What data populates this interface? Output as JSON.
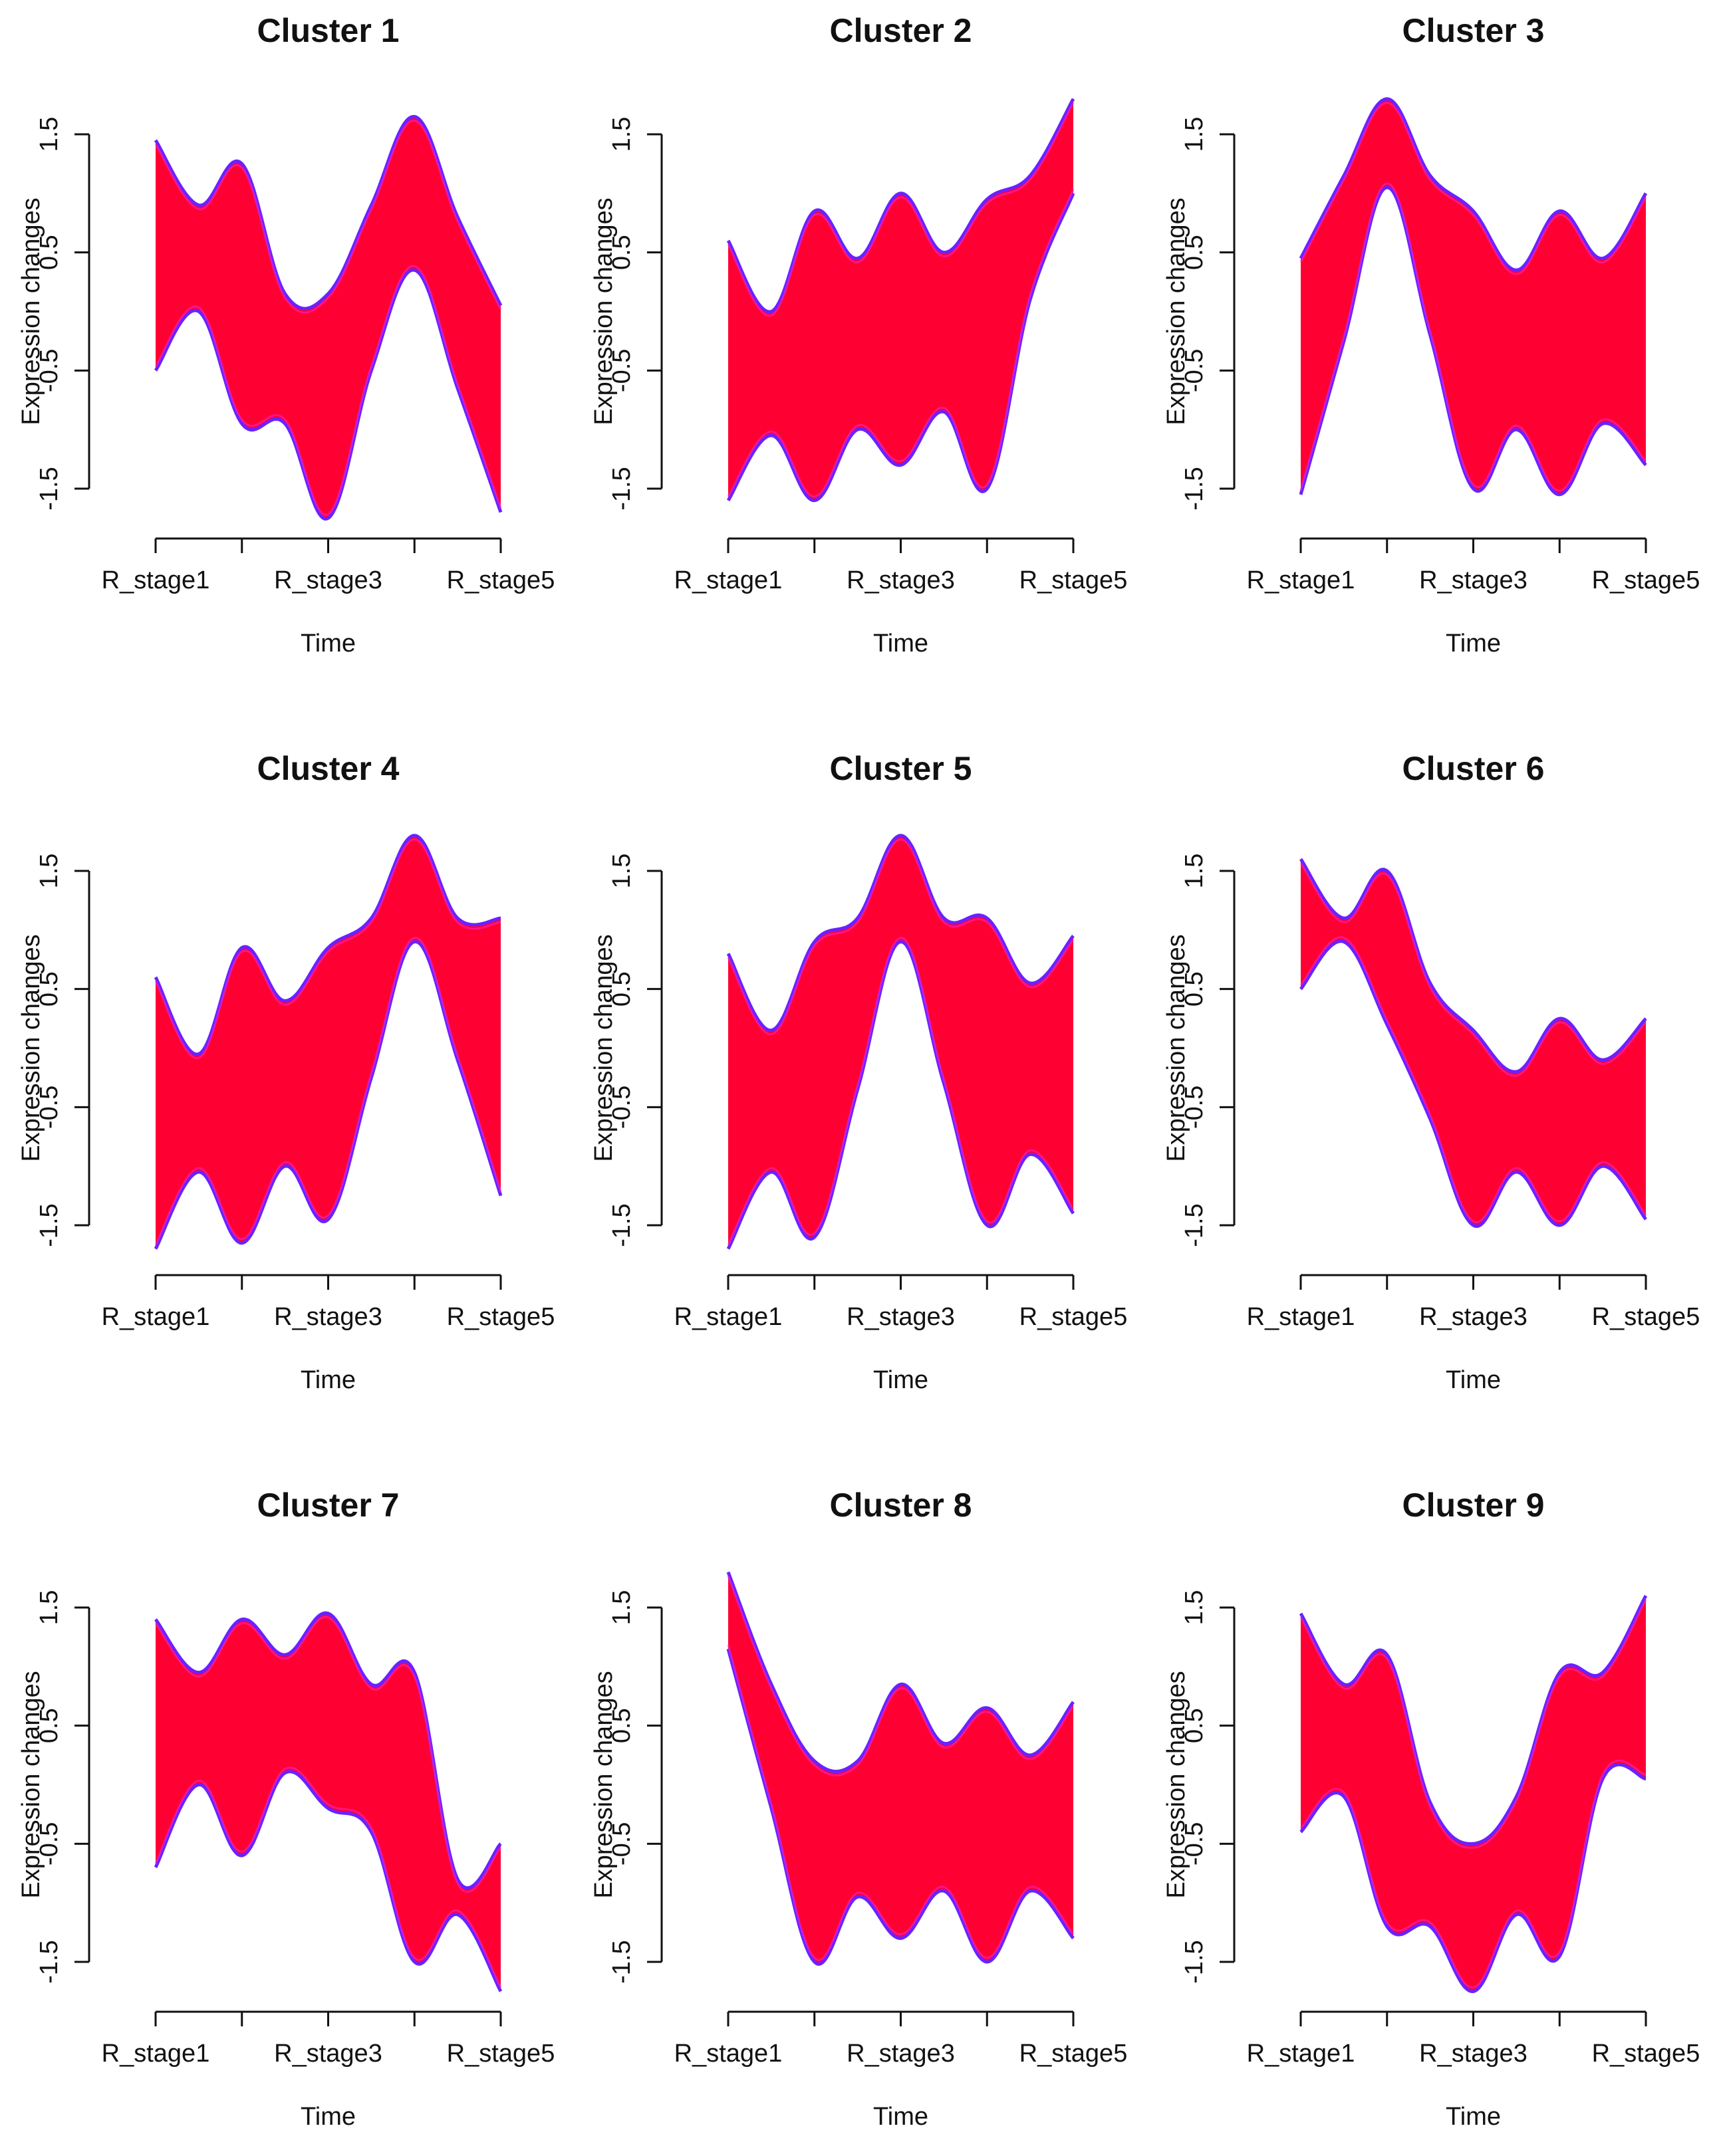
{
  "chart_data": [
    {
      "type": "area",
      "title": "Cluster 1",
      "xlabel": "Time",
      "ylabel": "Expression changes",
      "x": [
        1,
        1.5,
        2,
        2.5,
        3,
        3.5,
        4,
        4.5,
        5
      ],
      "xticks": [
        1,
        2,
        3,
        4,
        5
      ],
      "xtick_labels": [
        "R_stage1",
        "",
        "R_stage3",
        "",
        "R_stage5"
      ],
      "yticks": [
        -1.5,
        -0.5,
        0.5,
        1.5
      ],
      "ylim": [
        -1.7,
        1.85
      ],
      "upper": [
        1.45,
        0.9,
        1.25,
        0.15,
        0.15,
        0.9,
        1.65,
        0.8,
        0.05
      ],
      "lower": [
        -0.5,
        0.0,
        -0.95,
        -0.95,
        -1.75,
        -0.5,
        0.35,
        -0.65,
        -1.7
      ],
      "fill": "#ff0033",
      "edge": "#6a22ff"
    },
    {
      "type": "area",
      "title": "Cluster 2",
      "xlabel": "Time",
      "ylabel": "Expression changes",
      "x": [
        1,
        1.5,
        2,
        2.5,
        3,
        3.5,
        4,
        4.5,
        5
      ],
      "xticks": [
        1,
        2,
        3,
        4,
        5
      ],
      "xtick_labels": [
        "R_stage1",
        "",
        "R_stage3",
        "",
        "R_stage5"
      ],
      "yticks": [
        -1.5,
        -0.5,
        0.5,
        1.5
      ],
      "ylim": [
        -1.7,
        1.85
      ],
      "upper": [
        0.6,
        0.0,
        0.85,
        0.45,
        1.0,
        0.5,
        0.95,
        1.15,
        1.8
      ],
      "lower": [
        -1.6,
        -1.05,
        -1.6,
        -1.0,
        -1.3,
        -0.85,
        -1.5,
        0.1,
        1.0
      ],
      "fill": "#ff0033",
      "edge": "#6a22ff"
    },
    {
      "type": "area",
      "title": "Cluster 3",
      "xlabel": "Time",
      "ylabel": "Expression changes",
      "x": [
        1,
        1.5,
        2,
        2.5,
        3,
        3.5,
        4,
        4.5,
        5
      ],
      "xticks": [
        1,
        2,
        3,
        4,
        5
      ],
      "xtick_labels": [
        "R_stage1",
        "",
        "R_stage3",
        "",
        "R_stage5"
      ],
      "yticks": [
        -1.5,
        -0.5,
        0.5,
        1.5
      ],
      "ylim": [
        -1.7,
        1.85
      ],
      "upper": [
        0.45,
        1.15,
        1.8,
        1.15,
        0.85,
        0.35,
        0.85,
        0.45,
        1.0
      ],
      "lower": [
        -1.55,
        -0.25,
        1.05,
        -0.2,
        -1.5,
        -1.0,
        -1.55,
        -0.95,
        -1.3
      ],
      "fill": "#ff0033",
      "edge": "#6a22ff"
    },
    {
      "type": "area",
      "title": "Cluster 4",
      "xlabel": "Time",
      "ylabel": "Expression changes",
      "x": [
        1,
        1.5,
        2,
        2.5,
        3,
        3.5,
        4,
        4.5,
        5
      ],
      "xticks": [
        1,
        2,
        3,
        4,
        5
      ],
      "xtick_labels": [
        "R_stage1",
        "",
        "R_stage3",
        "",
        "R_stage5"
      ],
      "yticks": [
        -1.5,
        -0.5,
        0.5,
        1.5
      ],
      "ylim": [
        -1.7,
        1.85
      ],
      "upper": [
        0.6,
        -0.05,
        0.85,
        0.4,
        0.85,
        1.1,
        1.8,
        1.1,
        1.1
      ],
      "lower": [
        -1.7,
        -1.05,
        -1.65,
        -1.0,
        -1.45,
        -0.25,
        0.9,
        -0.1,
        -1.25
      ],
      "fill": "#ff0033",
      "edge": "#6a22ff"
    },
    {
      "type": "area",
      "title": "Cluster 5",
      "xlabel": "Time",
      "ylabel": "Expression changes",
      "x": [
        1,
        1.5,
        2,
        2.5,
        3,
        3.5,
        4,
        4.5,
        5
      ],
      "xticks": [
        1,
        2,
        3,
        4,
        5
      ],
      "xtick_labels": [
        "R_stage1",
        "",
        "R_stage3",
        "",
        "R_stage5"
      ],
      "yticks": [
        -1.5,
        -0.5,
        0.5,
        1.5
      ],
      "ylim": [
        -1.7,
        1.85
      ],
      "upper": [
        0.8,
        0.15,
        0.9,
        1.1,
        1.8,
        1.1,
        1.1,
        0.55,
        0.95
      ],
      "lower": [
        -1.7,
        -1.05,
        -1.6,
        -0.35,
        0.9,
        -0.3,
        -1.5,
        -0.9,
        -1.4
      ],
      "fill": "#ff0033",
      "edge": "#6a22ff"
    },
    {
      "type": "area",
      "title": "Cluster 6",
      "xlabel": "Time",
      "ylabel": "Expression changes",
      "x": [
        1,
        1.5,
        2,
        2.5,
        3,
        3.5,
        4,
        4.5,
        5
      ],
      "xticks": [
        1,
        2,
        3,
        4,
        5
      ],
      "xtick_labels": [
        "R_stage1",
        "",
        "R_stage3",
        "",
        "R_stage5"
      ],
      "yticks": [
        -1.5,
        -0.5,
        0.5,
        1.5
      ],
      "ylim": [
        -1.7,
        1.85
      ],
      "upper": [
        1.6,
        1.1,
        1.5,
        0.55,
        0.15,
        -0.2,
        0.25,
        -0.1,
        0.25
      ],
      "lower": [
        0.5,
        0.9,
        0.2,
        -0.6,
        -1.5,
        -1.05,
        -1.5,
        -1.0,
        -1.45
      ],
      "fill": "#ff0033",
      "edge": "#6a22ff"
    },
    {
      "type": "area",
      "title": "Cluster 7",
      "xlabel": "Time",
      "ylabel": "Expression changes",
      "x": [
        1,
        1.5,
        2,
        2.5,
        3,
        3.5,
        4,
        4.5,
        5
      ],
      "xticks": [
        1,
        2,
        3,
        4,
        5
      ],
      "xtick_labels": [
        "R_stage1",
        "",
        "R_stage3",
        "",
        "R_stage5"
      ],
      "yticks": [
        -1.5,
        -0.5,
        0.5,
        1.5
      ],
      "ylim": [
        -1.7,
        1.85
      ],
      "upper": [
        1.4,
        0.95,
        1.4,
        1.1,
        1.45,
        0.85,
        0.95,
        -0.8,
        -0.5
      ],
      "lower": [
        -0.7,
        0.0,
        -0.6,
        0.1,
        -0.2,
        -0.4,
        -1.5,
        -1.1,
        -1.75
      ],
      "fill": "#ff0033",
      "edge": "#6a22ff"
    },
    {
      "type": "area",
      "title": "Cluster 8",
      "xlabel": "Time",
      "ylabel": "Expression changes",
      "x": [
        1,
        1.5,
        2,
        2.5,
        3,
        3.5,
        4,
        4.5,
        5
      ],
      "xticks": [
        1,
        2,
        3,
        4,
        5
      ],
      "xtick_labels": [
        "R_stage1",
        "",
        "R_stage3",
        "",
        "R_stage5"
      ],
      "yticks": [
        -1.5,
        -0.5,
        0.5,
        1.5
      ],
      "ylim": [
        -1.7,
        1.85
      ],
      "upper": [
        1.8,
        0.85,
        0.2,
        0.2,
        0.85,
        0.35,
        0.65,
        0.25,
        0.7
      ],
      "lower": [
        1.15,
        -0.2,
        -1.5,
        -0.95,
        -1.3,
        -0.9,
        -1.5,
        -0.9,
        -1.3
      ],
      "fill": "#ff0033",
      "edge": "#6a22ff"
    },
    {
      "type": "area",
      "title": "Cluster 9",
      "xlabel": "Time",
      "ylabel": "Expression changes",
      "x": [
        1,
        1.5,
        2,
        2.5,
        3,
        3.5,
        4,
        4.5,
        5
      ],
      "xticks": [
        1,
        2,
        3,
        4,
        5
      ],
      "xtick_labels": [
        "R_stage1",
        "",
        "R_stage3",
        "",
        "R_stage5"
      ],
      "yticks": [
        -1.5,
        -0.5,
        0.5,
        1.5
      ],
      "ylim": [
        -1.7,
        1.85
      ],
      "upper": [
        1.45,
        0.85,
        1.1,
        -0.15,
        -0.5,
        -0.1,
        0.95,
        0.95,
        1.6
      ],
      "lower": [
        -0.4,
        -0.1,
        -1.2,
        -1.2,
        -1.75,
        -1.1,
        -1.45,
        0.05,
        0.05
      ],
      "fill": "#ff0033",
      "edge": "#6a22ff"
    }
  ]
}
